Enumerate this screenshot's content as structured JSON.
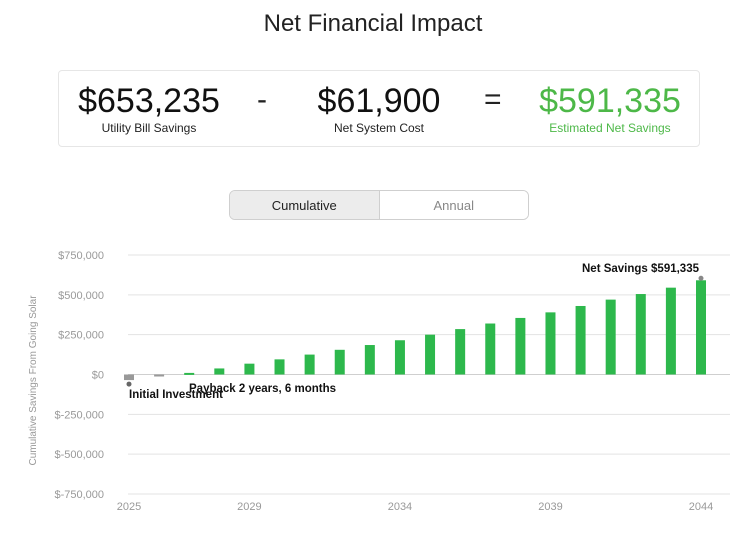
{
  "header": {
    "title": "Net Financial Impact"
  },
  "summary": {
    "utility": {
      "value": "$653,235",
      "label": "Utility Bill Savings"
    },
    "minus": "-",
    "cost": {
      "value": "$61,900",
      "label": "Net System Cost"
    },
    "equals": "=",
    "net": {
      "value": "$591,335",
      "label": "Estimated Net Savings"
    }
  },
  "toggle": {
    "cumulative": "Cumulative",
    "annual": "Annual"
  },
  "colors": {
    "bar": "#2db84c",
    "bar_negative": "#999999",
    "accent": "#4db848"
  },
  "chart_data": {
    "type": "bar",
    "ylabel": "Cumulative Savings From Going Solar",
    "ylim": [
      -750000,
      750000
    ],
    "y_ticks": [
      750000,
      500000,
      250000,
      0,
      -250000,
      -500000,
      -750000
    ],
    "y_tick_labels": [
      "$750,000",
      "$500,000",
      "$250,000",
      "$0",
      "$-250,000",
      "$-500,000",
      "$-750,000"
    ],
    "x_tick_labels": [
      "2025",
      "2029",
      "2034",
      "2039",
      "2044"
    ],
    "x_tick_years": [
      2025,
      2029,
      2034,
      2039,
      2044
    ],
    "grid": true,
    "categories": [
      2025,
      2026,
      2027,
      2028,
      2029,
      2030,
      2031,
      2032,
      2033,
      2034,
      2035,
      2036,
      2037,
      2038,
      2039,
      2040,
      2041,
      2042,
      2043,
      2044
    ],
    "values": [
      -35000,
      -8000,
      10000,
      38000,
      68000,
      95000,
      125000,
      155000,
      185000,
      215000,
      250000,
      285000,
      320000,
      355000,
      390000,
      430000,
      470000,
      505000,
      545000,
      591335
    ],
    "annotations": {
      "initial": "Initial Investment",
      "payback": "Payback 2 years, 6 months",
      "net": "Net Savings $591,335"
    }
  }
}
